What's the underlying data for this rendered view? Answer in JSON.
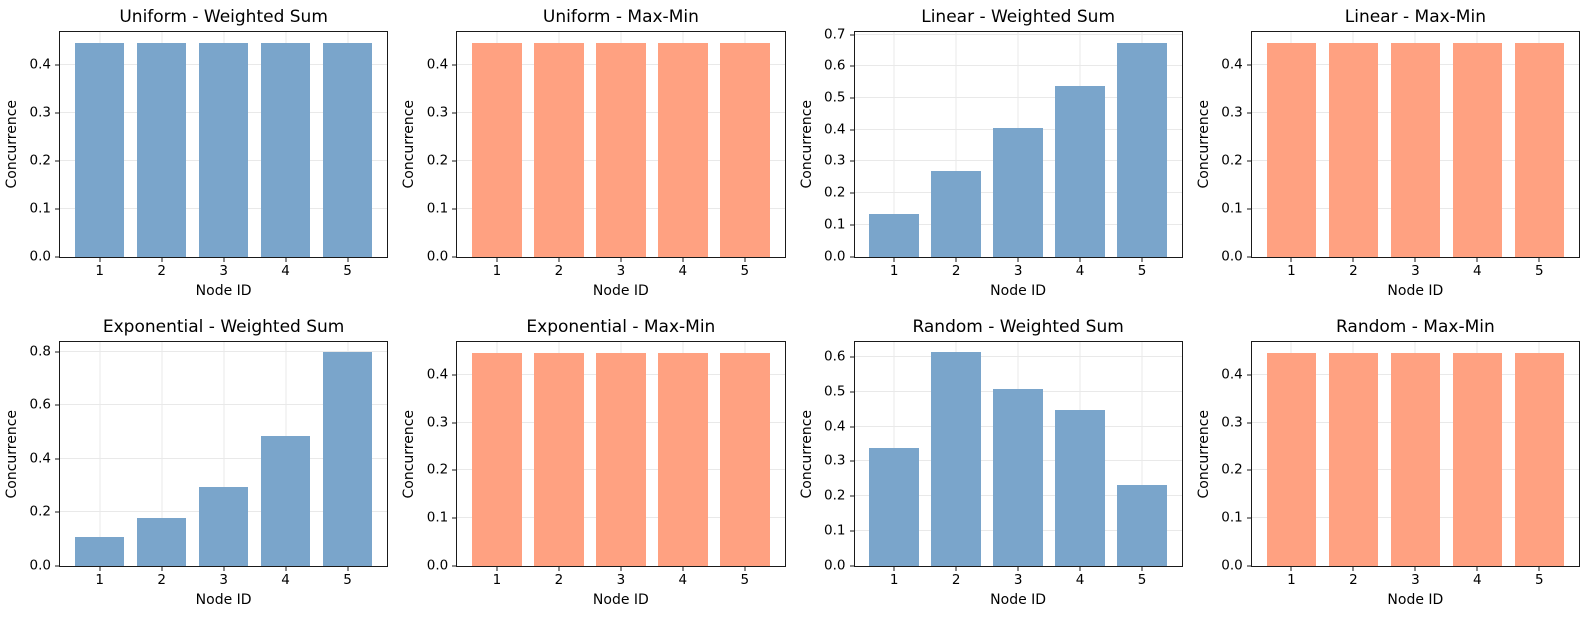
{
  "figure": {
    "background_color": "#ffffff",
    "spine_color": "#1a1a1a",
    "grid_color": "#e9e9e9",
    "text_color": "#000000",
    "weighted_sum_bar_color": "#7aa5cb",
    "max_min_bar_color": "#ffa181",
    "layout": {
      "rows": 2,
      "cols": 4,
      "grid": true,
      "legend_position": "none"
    }
  },
  "chart_data": [
    {
      "type": "bar",
      "title": "Uniform - Weighted Sum",
      "xlabel": "Node ID",
      "ylabel": "Concurrence",
      "categories": [
        "1",
        "2",
        "3",
        "4",
        "5"
      ],
      "values": [
        0.447,
        0.447,
        0.447,
        0.447,
        0.447
      ],
      "yticks": [
        0.0,
        0.1,
        0.2,
        0.3,
        0.4
      ],
      "ylim": [
        0,
        0.47
      ],
      "color": "#7aa5cb",
      "grid": true
    },
    {
      "type": "bar",
      "title": "Uniform - Max-Min",
      "xlabel": "Node ID",
      "ylabel": "Concurrence",
      "categories": [
        "1",
        "2",
        "3",
        "4",
        "5"
      ],
      "values": [
        0.447,
        0.447,
        0.447,
        0.447,
        0.447
      ],
      "yticks": [
        0.0,
        0.1,
        0.2,
        0.3,
        0.4
      ],
      "ylim": [
        0,
        0.47
      ],
      "color": "#ffa181",
      "grid": true
    },
    {
      "type": "bar",
      "title": "Linear - Weighted Sum",
      "xlabel": "Node ID",
      "ylabel": "Concurrence",
      "categories": [
        "1",
        "2",
        "3",
        "4",
        "5"
      ],
      "values": [
        0.135,
        0.27,
        0.404,
        0.539,
        0.674
      ],
      "yticks": [
        0.0,
        0.1,
        0.2,
        0.3,
        0.4,
        0.5,
        0.6,
        0.7
      ],
      "ylim": [
        0,
        0.708
      ],
      "color": "#7aa5cb",
      "grid": true
    },
    {
      "type": "bar",
      "title": "Linear - Max-Min",
      "xlabel": "Node ID",
      "ylabel": "Concurrence",
      "categories": [
        "1",
        "2",
        "3",
        "4",
        "5"
      ],
      "values": [
        0.447,
        0.447,
        0.447,
        0.447,
        0.447
      ],
      "yticks": [
        0.0,
        0.1,
        0.2,
        0.3,
        0.4
      ],
      "ylim": [
        0,
        0.47
      ],
      "color": "#ffa181",
      "grid": true
    },
    {
      "type": "bar",
      "title": "Exponential - Weighted Sum",
      "xlabel": "Node ID",
      "ylabel": "Concurrence",
      "categories": [
        "1",
        "2",
        "3",
        "4",
        "5"
      ],
      "values": [
        0.108,
        0.178,
        0.295,
        0.485,
        0.798
      ],
      "yticks": [
        0.0,
        0.2,
        0.4,
        0.6,
        0.8
      ],
      "ylim": [
        0,
        0.838
      ],
      "color": "#7aa5cb",
      "grid": true
    },
    {
      "type": "bar",
      "title": "Exponential - Max-Min",
      "xlabel": "Node ID",
      "ylabel": "Concurrence",
      "categories": [
        "1",
        "2",
        "3",
        "4",
        "5"
      ],
      "values": [
        0.447,
        0.447,
        0.447,
        0.447,
        0.447
      ],
      "yticks": [
        0.0,
        0.1,
        0.2,
        0.3,
        0.4
      ],
      "ylim": [
        0,
        0.47
      ],
      "color": "#ffa181",
      "grid": true
    },
    {
      "type": "bar",
      "title": "Random - Weighted Sum",
      "xlabel": "Node ID",
      "ylabel": "Concurrence",
      "categories": [
        "1",
        "2",
        "3",
        "4",
        "5"
      ],
      "values": [
        0.338,
        0.613,
        0.509,
        0.447,
        0.233
      ],
      "yticks": [
        0.0,
        0.1,
        0.2,
        0.3,
        0.4,
        0.5,
        0.6
      ],
      "ylim": [
        0,
        0.644
      ],
      "color": "#7aa5cb",
      "grid": true
    },
    {
      "type": "bar",
      "title": "Random - Max-Min",
      "xlabel": "Node ID",
      "ylabel": "Concurrence",
      "categories": [
        "1",
        "2",
        "3",
        "4",
        "5"
      ],
      "values": [
        0.447,
        0.447,
        0.447,
        0.447,
        0.447
      ],
      "yticks": [
        0.0,
        0.1,
        0.2,
        0.3,
        0.4
      ],
      "ylim": [
        0,
        0.47
      ],
      "color": "#ffa181",
      "grid": true
    }
  ]
}
